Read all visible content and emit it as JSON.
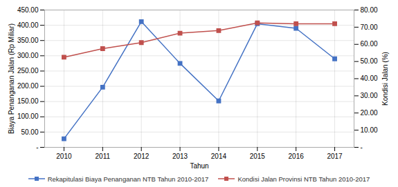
{
  "chart_data": {
    "type": "line",
    "x": [
      2010,
      2011,
      2012,
      2013,
      2014,
      2015,
      2016,
      2017
    ],
    "xlabel": "Tahun",
    "xlim": [
      2009.5,
      2017.5
    ],
    "xticks": [
      2010,
      2011,
      2012,
      2013,
      2014,
      2015,
      2016,
      2017
    ],
    "ylabel": "Biaya Penanganan Jalan (Rp Miliar)",
    "ylim": [
      0,
      450
    ],
    "yticks": [
      {
        "value": 0,
        "label": "-"
      },
      {
        "value": 50,
        "label": "50.00"
      },
      {
        "value": 100,
        "label": "100.00"
      },
      {
        "value": 150,
        "label": "150.00"
      },
      {
        "value": 200,
        "label": "200.00"
      },
      {
        "value": 250,
        "label": "250.00"
      },
      {
        "value": 300,
        "label": "300.00"
      },
      {
        "value": 350,
        "label": "350.00"
      },
      {
        "value": 400,
        "label": "400.00"
      },
      {
        "value": 450,
        "label": "450.00"
      }
    ],
    "y2label": "Kondisi Jalan (%)",
    "y2lim": [
      0,
      80
    ],
    "y2ticks": [
      {
        "value": 0,
        "label": "-"
      },
      {
        "value": 10,
        "label": "10.00"
      },
      {
        "value": 20,
        "label": "20.00"
      },
      {
        "value": 30,
        "label": "30.00"
      },
      {
        "value": 40,
        "label": "40.00"
      },
      {
        "value": 50,
        "label": "50.00"
      },
      {
        "value": 60,
        "label": "60.00"
      },
      {
        "value": 70,
        "label": "70.00"
      },
      {
        "value": 80,
        "label": "80.00"
      }
    ],
    "grid": true,
    "legend": "bottom",
    "series": [
      {
        "name": "Rekapitulasi Biaya Penanganan NTB Tahun 2010-2017",
        "color": "#4472C4",
        "marker": "square",
        "values": [
          28,
          197,
          412,
          275,
          152,
          405,
          390,
          290
        ]
      },
      {
        "name": "Kondisi Jalan Provinsi NTB Tahun 2010-2017",
        "color": "#C0504D",
        "marker": "square",
        "axis": "y2",
        "values": [
          52.5,
          57.5,
          61.0,
          66.5,
          68.0,
          72.5,
          72.0,
          72.0
        ]
      }
    ]
  }
}
